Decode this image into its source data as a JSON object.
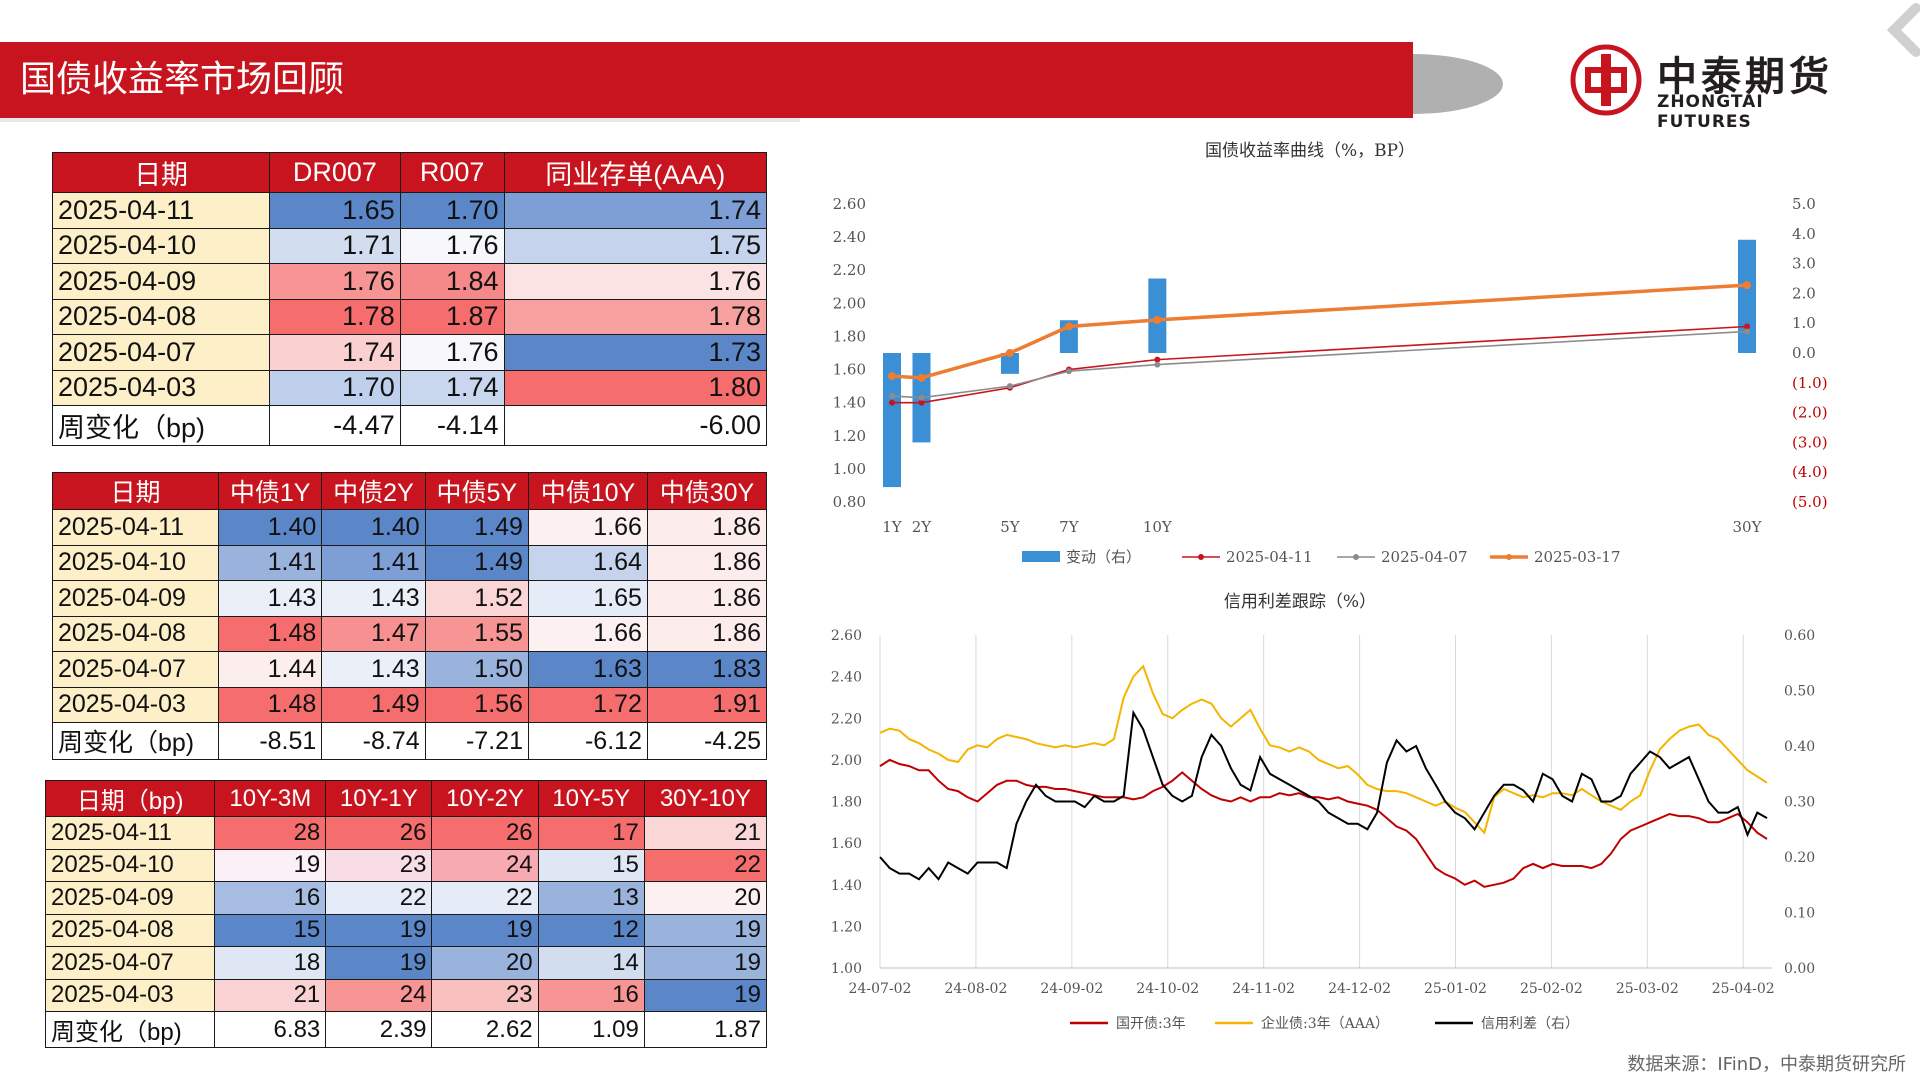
{
  "header": {
    "title": "国债收益率市场回顾"
  },
  "logo": {
    "cn": "中泰期货",
    "en": "ZHONGTAI FUTURES"
  },
  "table1": {
    "headers": [
      "日期",
      "DR007",
      "R007",
      "同业存单(AAA)"
    ],
    "rows": [
      {
        "date": "2025-04-11",
        "v": [
          "1.65",
          "1.70",
          "1.74"
        ],
        "c": [
          "#5b86c8",
          "#5b86c8",
          "#7d9fd6"
        ]
      },
      {
        "date": "2025-04-10",
        "v": [
          "1.71",
          "1.76",
          "1.75"
        ],
        "c": [
          "#d3ddf0",
          "#f8f8fc",
          "#c5d3ec"
        ]
      },
      {
        "date": "2025-04-09",
        "v": [
          "1.76",
          "1.84",
          "1.76"
        ],
        "c": [
          "#f79494",
          "#f58888",
          "#fce3e3"
        ]
      },
      {
        "date": "2025-04-08",
        "v": [
          "1.78",
          "1.87",
          "1.78"
        ],
        "c": [
          "#f56d6d",
          "#f56d6d",
          "#f7a0a0"
        ]
      },
      {
        "date": "2025-04-07",
        "v": [
          "1.74",
          "1.76",
          "1.73"
        ],
        "c": [
          "#fbd0d0",
          "#f8f8fc",
          "#5b86c8"
        ]
      },
      {
        "date": "2025-04-03",
        "v": [
          "1.70",
          "1.74",
          "1.80"
        ],
        "c": [
          "#bfd0ec",
          "#c8d6ee",
          "#f56d6d"
        ]
      }
    ],
    "change": {
      "label": "周变化（bp)",
      "v": [
        "-4.47",
        "-4.14",
        "-6.00"
      ]
    }
  },
  "table2": {
    "headers": [
      "日期",
      "中债1Y",
      "中债2Y",
      "中债5Y",
      "中债10Y",
      "中债30Y"
    ],
    "rows": [
      {
        "date": "2025-04-11",
        "v": [
          "1.40",
          "1.40",
          "1.49",
          "1.66",
          "1.86"
        ],
        "c": [
          "#5b86c8",
          "#5b86c8",
          "#5b86c8",
          "#fdf0f0",
          "#fcecec"
        ]
      },
      {
        "date": "2025-04-10",
        "v": [
          "1.41",
          "1.41",
          "1.49",
          "1.64",
          "1.86"
        ],
        "c": [
          "#9ab3dd",
          "#7d9fd6",
          "#5b86c8",
          "#c5d3ec",
          "#fcecec"
        ]
      },
      {
        "date": "2025-04-09",
        "v": [
          "1.43",
          "1.43",
          "1.52",
          "1.65",
          "1.86"
        ],
        "c": [
          "#eaeff8",
          "#eaeff8",
          "#fbd6d6",
          "#e6ecf7",
          "#fcecec"
        ]
      },
      {
        "date": "2025-04-08",
        "v": [
          "1.48",
          "1.47",
          "1.55",
          "1.66",
          "1.86"
        ],
        "c": [
          "#f56d6d",
          "#f79090",
          "#f79494",
          "#fdf0f0",
          "#fcecec"
        ]
      },
      {
        "date": "2025-04-07",
        "v": [
          "1.44",
          "1.43",
          "1.50",
          "1.63",
          "1.83"
        ],
        "c": [
          "#fdeeee",
          "#eaeff8",
          "#9ab3dd",
          "#5b86c8",
          "#5b86c8"
        ]
      },
      {
        "date": "2025-04-03",
        "v": [
          "1.48",
          "1.49",
          "1.56",
          "1.72",
          "1.91"
        ],
        "c": [
          "#f56d6d",
          "#f56d6d",
          "#f56d6d",
          "#f56d6d",
          "#f56d6d"
        ]
      }
    ],
    "change": {
      "label": "周变化（bp)",
      "v": [
        "-8.51",
        "-8.74",
        "-7.21",
        "-6.12",
        "-4.25"
      ]
    }
  },
  "table3": {
    "headers": [
      "日期（bp)",
      "10Y-3M",
      "10Y-1Y",
      "10Y-2Y",
      "10Y-5Y",
      "30Y-10Y"
    ],
    "rows": [
      {
        "date": "2025-04-11",
        "v": [
          "28",
          "26",
          "26",
          "17",
          "21"
        ],
        "c": [
          "#f56d6d",
          "#f56d6d",
          "#f56d6d",
          "#f56d6d",
          "#fbd6d6"
        ]
      },
      {
        "date": "2025-04-10",
        "v": [
          "19",
          "23",
          "24",
          "15",
          "22"
        ],
        "c": [
          "#fbf0f6",
          "#f9dde6",
          "#f7aab2",
          "#dfe6f4",
          "#f56d6d"
        ]
      },
      {
        "date": "2025-04-09",
        "v": [
          "16",
          "22",
          "22",
          "13",
          "20"
        ],
        "c": [
          "#a7bce2",
          "#e6ecf7",
          "#e6ecf7",
          "#9ab3dd",
          "#fdf0f0"
        ]
      },
      {
        "date": "2025-04-08",
        "v": [
          "15",
          "19",
          "19",
          "12",
          "19"
        ],
        "c": [
          "#5b86c8",
          "#5b86c8",
          "#5b86c8",
          "#5b86c8",
          "#9ab3dd"
        ]
      },
      {
        "date": "2025-04-07",
        "v": [
          "18",
          "19",
          "20",
          "14",
          "19"
        ],
        "c": [
          "#dfe6f4",
          "#5b86c8",
          "#9ab3dd",
          "#d3ddf0",
          "#9ab3dd"
        ]
      },
      {
        "date": "2025-04-03",
        "v": [
          "21",
          "24",
          "23",
          "16",
          "19"
        ],
        "c": [
          "#f9d3d3",
          "#f79494",
          "#f9c0c0",
          "#f79494",
          "#5b86c8"
        ]
      }
    ],
    "change": {
      "label": "周变化（bp)",
      "v": [
        "6.83",
        "2.39",
        "2.62",
        "1.09",
        "1.87"
      ]
    }
  },
  "chart_data": [
    {
      "type": "bar",
      "title": "国债收益率曲线（%，BP）",
      "categories": [
        "1Y",
        "2Y",
        "5Y",
        "7Y",
        "10Y",
        "30Y"
      ],
      "x_pos": [
        1,
        2,
        5,
        7,
        10,
        30
      ],
      "ylim": [
        0.8,
        2.6
      ],
      "y_ticks": [
        "0.80",
        "1.00",
        "1.20",
        "1.40",
        "1.60",
        "1.80",
        "2.00",
        "2.20",
        "2.40",
        "2.60"
      ],
      "y2lim": [
        -5,
        5
      ],
      "y2_ticks": [
        "(5.0)",
        "(4.0)",
        "(3.0)",
        "(2.0)",
        "(1.0)",
        "0.0",
        "1.0",
        "2.0",
        "3.0",
        "4.0",
        "5.0"
      ],
      "bars": {
        "name": "变动（右）",
        "values": [
          -4.5,
          -3.0,
          -0.7,
          1.1,
          2.5,
          3.8
        ],
        "color": "#3b8fd4"
      },
      "series": [
        {
          "name": "2025-04-11",
          "values": [
            1.4,
            1.4,
            1.49,
            1.6,
            1.66,
            1.86
          ],
          "color": "#c8141e"
        },
        {
          "name": "2025-04-07",
          "values": [
            1.44,
            1.43,
            1.5,
            1.59,
            1.63,
            1.83
          ],
          "color": "#8c8c8c"
        },
        {
          "name": "2025-03-17",
          "values": [
            1.56,
            1.55,
            1.7,
            1.86,
            1.9,
            2.11
          ],
          "color": "#ed7d31"
        }
      ]
    },
    {
      "type": "line",
      "title": "信用利差跟踪（%）",
      "x_ticks": [
        "24-07-02",
        "24-08-02",
        "24-09-02",
        "24-10-02",
        "24-11-02",
        "24-12-02",
        "25-01-02",
        "25-02-02",
        "25-03-02",
        "25-04-02"
      ],
      "ylim": [
        1.0,
        2.6
      ],
      "y_ticks": [
        "1.00",
        "1.20",
        "1.40",
        "1.60",
        "1.80",
        "2.00",
        "2.20",
        "2.40",
        "2.60"
      ],
      "y2lim": [
        0.0,
        0.6
      ],
      "y2_ticks": [
        "0.00",
        "0.10",
        "0.20",
        "0.30",
        "0.40",
        "0.50",
        "0.60"
      ],
      "series": [
        {
          "name": "国开债:3年",
          "axis": "left",
          "color": "#c00000",
          "values": [
            1.97,
            2.0,
            1.98,
            1.97,
            1.95,
            1.95,
            1.9,
            1.86,
            1.85,
            1.82,
            1.8,
            1.84,
            1.88,
            1.9,
            1.9,
            1.88,
            1.87,
            1.87,
            1.86,
            1.86,
            1.85,
            1.84,
            1.83,
            1.82,
            1.82,
            1.82,
            1.81,
            1.82,
            1.85,
            1.87,
            1.9,
            1.94,
            1.9,
            1.86,
            1.83,
            1.81,
            1.8,
            1.82,
            1.8,
            1.82,
            1.82,
            1.84,
            1.83,
            1.84,
            1.82,
            1.82,
            1.81,
            1.82,
            1.8,
            1.79,
            1.78,
            1.76,
            1.72,
            1.68,
            1.66,
            1.62,
            1.55,
            1.48,
            1.45,
            1.43,
            1.4,
            1.42,
            1.39,
            1.4,
            1.41,
            1.43,
            1.48,
            1.5,
            1.48,
            1.5,
            1.49,
            1.49,
            1.49,
            1.48,
            1.5,
            1.55,
            1.62,
            1.66,
            1.68,
            1.7,
            1.72,
            1.74,
            1.73,
            1.73,
            1.72,
            1.7,
            1.7,
            1.72,
            1.74,
            1.7,
            1.65,
            1.62
          ]
        },
        {
          "name": "企业债:3年（AAA）",
          "axis": "left",
          "color": "#f4b400",
          "values": [
            2.13,
            2.15,
            2.14,
            2.1,
            2.08,
            2.05,
            2.03,
            2.0,
            1.99,
            2.05,
            2.07,
            2.06,
            2.1,
            2.12,
            2.11,
            2.1,
            2.08,
            2.07,
            2.06,
            2.07,
            2.06,
            2.07,
            2.08,
            2.07,
            2.1,
            2.3,
            2.4,
            2.45,
            2.32,
            2.22,
            2.2,
            2.24,
            2.27,
            2.29,
            2.27,
            2.2,
            2.16,
            2.2,
            2.24,
            2.15,
            2.07,
            2.06,
            2.04,
            2.06,
            2.04,
            2.0,
            1.98,
            1.96,
            1.97,
            1.93,
            1.88,
            1.86,
            1.85,
            1.85,
            1.84,
            1.82,
            1.8,
            1.78,
            1.8,
            1.77,
            1.75,
            1.7,
            1.65,
            1.82,
            1.86,
            1.84,
            1.82,
            1.83,
            1.82,
            1.84,
            1.84,
            1.83,
            1.86,
            1.83,
            1.8,
            1.78,
            1.76,
            1.8,
            1.83,
            1.95,
            2.05,
            2.1,
            2.14,
            2.16,
            2.17,
            2.12,
            2.1,
            2.05,
            2.0,
            1.95,
            1.92,
            1.89
          ]
        },
        {
          "name": "信用利差（右）",
          "axis": "right",
          "color": "#000000",
          "values": [
            0.2,
            0.18,
            0.17,
            0.17,
            0.16,
            0.18,
            0.16,
            0.19,
            0.18,
            0.17,
            0.19,
            0.19,
            0.19,
            0.18,
            0.26,
            0.3,
            0.33,
            0.31,
            0.3,
            0.3,
            0.3,
            0.29,
            0.31,
            0.3,
            0.3,
            0.31,
            0.46,
            0.43,
            0.38,
            0.33,
            0.31,
            0.3,
            0.31,
            0.38,
            0.42,
            0.4,
            0.36,
            0.33,
            0.32,
            0.38,
            0.35,
            0.34,
            0.33,
            0.32,
            0.31,
            0.3,
            0.28,
            0.27,
            0.26,
            0.26,
            0.25,
            0.28,
            0.37,
            0.41,
            0.39,
            0.4,
            0.36,
            0.33,
            0.3,
            0.28,
            0.27,
            0.25,
            0.28,
            0.31,
            0.33,
            0.33,
            0.32,
            0.3,
            0.35,
            0.34,
            0.31,
            0.3,
            0.35,
            0.34,
            0.3,
            0.3,
            0.31,
            0.35,
            0.37,
            0.39,
            0.38,
            0.36,
            0.37,
            0.38,
            0.34,
            0.3,
            0.28,
            0.28,
            0.29,
            0.24,
            0.28,
            0.27
          ]
        }
      ]
    }
  ],
  "source": "数据来源：IFinD，中泰期货研究所"
}
